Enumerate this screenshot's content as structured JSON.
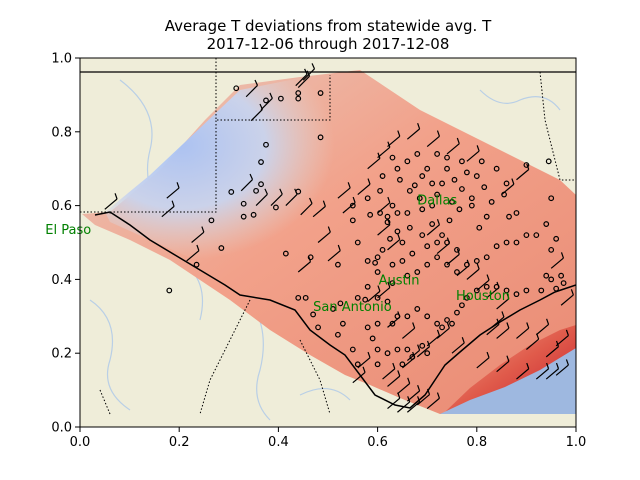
{
  "chart_data": {
    "type": "heatmap",
    "title_lines": [
      "Average T deviations from statewide avg. T",
      "2017-12-06 through 2017-12-08"
    ],
    "xlabel": "",
    "ylabel": "",
    "xlim": [
      0,
      1
    ],
    "ylim": [
      0,
      1
    ],
    "xticks": [
      0.0,
      0.2,
      0.4,
      0.6,
      0.8,
      1.0
    ],
    "yticks": [
      0.0,
      0.2,
      0.4,
      0.6,
      0.8,
      1.0
    ],
    "xtick_labels": [
      "0.0",
      "0.2",
      "0.4",
      "0.6",
      "0.8",
      "1.0"
    ],
    "ytick_labels": [
      "0.0",
      "0.2",
      "0.4",
      "0.6",
      "0.8",
      "1.0"
    ],
    "grid": false,
    "colormap": "coolwarm",
    "colors": {
      "land": "#efedd9",
      "water": "#9eb8e0",
      "river": "#b9cfe6",
      "cold": "#a9c3f5",
      "neutral": "#e4d6d0",
      "warm": "#f2a18a",
      "hot": "#c41a2c",
      "label": "#008000"
    },
    "cities": [
      {
        "name": "El Paso",
        "x": -0.07,
        "y": 0.535
      },
      {
        "name": "Dallas",
        "x": 0.68,
        "y": 0.615
      },
      {
        "name": "Austin",
        "x": 0.602,
        "y": 0.398
      },
      {
        "name": "San Antonio",
        "x": 0.47,
        "y": 0.327
      },
      {
        "name": "Houston",
        "x": 0.758,
        "y": 0.357
      }
    ],
    "stations": [
      [
        0.315,
        0.918
      ],
      [
        0.375,
        0.885
      ],
      [
        0.405,
        0.89
      ],
      [
        0.44,
        0.905
      ],
      [
        0.44,
        0.89
      ],
      [
        0.485,
        0.905
      ],
      [
        0.485,
        0.785
      ],
      [
        0.365,
        0.718
      ],
      [
        0.375,
        0.765
      ],
      [
        0.305,
        0.637
      ],
      [
        0.355,
        0.64
      ],
      [
        0.365,
        0.658
      ],
      [
        0.33,
        0.605
      ],
      [
        0.33,
        0.57
      ],
      [
        0.35,
        0.575
      ],
      [
        0.395,
        0.595
      ],
      [
        0.44,
        0.638
      ],
      [
        0.265,
        0.56
      ],
      [
        0.285,
        0.485
      ],
      [
        0.235,
        0.44
      ],
      [
        0.18,
        0.37
      ],
      [
        0.415,
        0.47
      ],
      [
        0.465,
        0.46
      ],
      [
        0.44,
        0.35
      ],
      [
        0.455,
        0.35
      ],
      [
        0.47,
        0.305
      ],
      [
        0.52,
        0.44
      ],
      [
        0.525,
        0.335
      ],
      [
        0.53,
        0.28
      ],
      [
        0.56,
        0.5
      ],
      [
        0.55,
        0.56
      ],
      [
        0.55,
        0.6
      ],
      [
        0.58,
        0.62
      ],
      [
        0.585,
        0.575
      ],
      [
        0.605,
        0.58
      ],
      [
        0.605,
        0.64
      ],
      [
        0.61,
        0.68
      ],
      [
        0.62,
        0.555
      ],
      [
        0.63,
        0.6
      ],
      [
        0.64,
        0.7
      ],
      [
        0.645,
        0.67
      ],
      [
        0.66,
        0.72
      ],
      [
        0.665,
        0.64
      ],
      [
        0.675,
        0.655
      ],
      [
        0.685,
        0.62
      ],
      [
        0.69,
        0.68
      ],
      [
        0.7,
        0.7
      ],
      [
        0.71,
        0.66
      ],
      [
        0.72,
        0.63
      ],
      [
        0.73,
        0.66
      ],
      [
        0.74,
        0.7
      ],
      [
        0.755,
        0.67
      ],
      [
        0.77,
        0.645
      ],
      [
        0.78,
        0.69
      ],
      [
        0.8,
        0.68
      ],
      [
        0.815,
        0.65
      ],
      [
        0.83,
        0.61
      ],
      [
        0.84,
        0.7
      ],
      [
        0.855,
        0.63
      ],
      [
        0.865,
        0.57
      ],
      [
        0.82,
        0.57
      ],
      [
        0.805,
        0.54
      ],
      [
        0.79,
        0.6
      ],
      [
        0.765,
        0.59
      ],
      [
        0.745,
        0.56
      ],
      [
        0.73,
        0.52
      ],
      [
        0.71,
        0.55
      ],
      [
        0.69,
        0.52
      ],
      [
        0.665,
        0.54
      ],
      [
        0.65,
        0.5
      ],
      [
        0.64,
        0.53
      ],
      [
        0.625,
        0.51
      ],
      [
        0.61,
        0.48
      ],
      [
        0.595,
        0.445
      ],
      [
        0.6,
        0.42
      ],
      [
        0.58,
        0.38
      ],
      [
        0.56,
        0.35
      ],
      [
        0.575,
        0.345
      ],
      [
        0.6,
        0.35
      ],
      [
        0.62,
        0.34
      ],
      [
        0.63,
        0.39
      ],
      [
        0.66,
        0.41
      ],
      [
        0.68,
        0.42
      ],
      [
        0.7,
        0.44
      ],
      [
        0.72,
        0.46
      ],
      [
        0.74,
        0.44
      ],
      [
        0.76,
        0.42
      ],
      [
        0.78,
        0.44
      ],
      [
        0.8,
        0.45
      ],
      [
        0.82,
        0.46
      ],
      [
        0.84,
        0.49
      ],
      [
        0.86,
        0.5
      ],
      [
        0.88,
        0.5
      ],
      [
        0.9,
        0.52
      ],
      [
        0.92,
        0.52
      ],
      [
        0.95,
        0.48
      ],
      [
        0.96,
        0.51
      ],
      [
        0.94,
        0.41
      ],
      [
        0.95,
        0.4
      ],
      [
        0.97,
        0.41
      ],
      [
        0.975,
        0.39
      ],
      [
        0.96,
        0.375
      ],
      [
        0.93,
        0.37
      ],
      [
        0.9,
        0.37
      ],
      [
        0.88,
        0.36
      ],
      [
        0.86,
        0.37
      ],
      [
        0.84,
        0.38
      ],
      [
        0.82,
        0.38
      ],
      [
        0.8,
        0.37
      ],
      [
        0.78,
        0.35
      ],
      [
        0.77,
        0.33
      ],
      [
        0.76,
        0.31
      ],
      [
        0.74,
        0.29
      ],
      [
        0.75,
        0.28
      ],
      [
        0.73,
        0.27
      ],
      [
        0.72,
        0.28
      ],
      [
        0.7,
        0.3
      ],
      [
        0.68,
        0.32
      ],
      [
        0.66,
        0.3
      ],
      [
        0.64,
        0.3
      ],
      [
        0.63,
        0.28
      ],
      [
        0.6,
        0.28
      ],
      [
        0.58,
        0.27
      ],
      [
        0.59,
        0.24
      ],
      [
        0.6,
        0.21
      ],
      [
        0.62,
        0.2
      ],
      [
        0.64,
        0.21
      ],
      [
        0.66,
        0.21
      ],
      [
        0.69,
        0.22
      ],
      [
        0.7,
        0.2
      ],
      [
        0.67,
        0.19
      ],
      [
        0.65,
        0.17
      ],
      [
        0.6,
        0.17
      ],
      [
        0.56,
        0.17
      ],
      [
        0.55,
        0.21
      ],
      [
        0.52,
        0.25
      ],
      [
        0.51,
        0.32
      ],
      [
        0.48,
        0.27
      ],
      [
        0.95,
        0.62
      ],
      [
        0.94,
        0.55
      ],
      [
        0.88,
        0.58
      ],
      [
        0.86,
        0.66
      ],
      [
        0.9,
        0.71
      ],
      [
        0.945,
        0.72
      ],
      [
        0.81,
        0.72
      ],
      [
        0.77,
        0.72
      ],
      [
        0.74,
        0.73
      ],
      [
        0.72,
        0.74
      ],
      [
        0.68,
        0.74
      ],
      [
        0.63,
        0.73
      ],
      [
        0.62,
        0.57
      ],
      [
        0.64,
        0.58
      ],
      [
        0.66,
        0.58
      ],
      [
        0.69,
        0.59
      ],
      [
        0.71,
        0.6
      ],
      [
        0.75,
        0.61
      ],
      [
        0.79,
        0.62
      ],
      [
        0.7,
        0.49
      ],
      [
        0.72,
        0.5
      ],
      [
        0.74,
        0.5
      ],
      [
        0.76,
        0.48
      ],
      [
        0.67,
        0.47
      ],
      [
        0.65,
        0.45
      ],
      [
        0.63,
        0.44
      ],
      [
        0.6,
        0.46
      ],
      [
        0.58,
        0.45
      ]
    ],
    "wind_barbs": [
      [
        0.435,
        0.925,
        45
      ],
      [
        0.45,
        0.94,
        45
      ],
      [
        0.365,
        0.86,
        45
      ],
      [
        0.335,
        0.895,
        45
      ],
      [
        0.345,
        0.83,
        45
      ],
      [
        0.44,
        0.92,
        45
      ],
      [
        0.325,
        0.64,
        45
      ],
      [
        0.355,
        0.6,
        45
      ],
      [
        0.385,
        0.6,
        45
      ],
      [
        0.415,
        0.6,
        45
      ],
      [
        0.445,
        0.575,
        45
      ],
      [
        0.175,
        0.62,
        40
      ],
      [
        0.165,
        0.57,
        40
      ],
      [
        0.225,
        0.5,
        40
      ],
      [
        0.215,
        0.45,
        40
      ],
      [
        0.05,
        0.59,
        40
      ],
      [
        0.47,
        0.57,
        40
      ],
      [
        0.48,
        0.5,
        40
      ],
      [
        0.53,
        0.58,
        40
      ],
      [
        0.6,
        0.58,
        40
      ],
      [
        0.6,
        0.52,
        40
      ],
      [
        0.62,
        0.48,
        40
      ],
      [
        0.7,
        0.52,
        40
      ],
      [
        0.72,
        0.47,
        40
      ],
      [
        0.74,
        0.44,
        40
      ],
      [
        0.76,
        0.41,
        40
      ],
      [
        0.78,
        0.4,
        40
      ],
      [
        0.8,
        0.37,
        40
      ],
      [
        0.82,
        0.35,
        40
      ],
      [
        0.84,
        0.32,
        40
      ],
      [
        0.83,
        0.27,
        40
      ],
      [
        0.82,
        0.25,
        40
      ],
      [
        0.84,
        0.24,
        40
      ],
      [
        0.88,
        0.24,
        40
      ],
      [
        0.9,
        0.21,
        40
      ],
      [
        0.94,
        0.19,
        40
      ],
      [
        0.96,
        0.22,
        40
      ],
      [
        0.96,
        0.14,
        40
      ],
      [
        0.94,
        0.13,
        40
      ],
      [
        0.92,
        0.13,
        40
      ],
      [
        0.88,
        0.13,
        40
      ],
      [
        0.84,
        0.15,
        40
      ],
      [
        0.8,
        0.16,
        40
      ],
      [
        0.75,
        0.2,
        40
      ],
      [
        0.72,
        0.24,
        40
      ],
      [
        0.7,
        0.22,
        40
      ],
      [
        0.66,
        0.18,
        40
      ],
      [
        0.65,
        0.16,
        40
      ],
      [
        0.61,
        0.13,
        40
      ],
      [
        0.62,
        0.11,
        40
      ],
      [
        0.64,
        0.09,
        40
      ],
      [
        0.66,
        0.07,
        40
      ],
      [
        0.68,
        0.06,
        40
      ],
      [
        0.7,
        0.05,
        40
      ],
      [
        0.62,
        0.05,
        40
      ],
      [
        0.64,
        0.04,
        40
      ],
      [
        0.66,
        0.04,
        40
      ],
      [
        0.92,
        0.25,
        40
      ],
      [
        0.97,
        0.33,
        40
      ],
      [
        0.95,
        0.43,
        40
      ],
      [
        0.85,
        0.63,
        40
      ],
      [
        0.88,
        0.67,
        40
      ],
      [
        0.78,
        0.72,
        40
      ],
      [
        0.74,
        0.74,
        40
      ],
      [
        0.7,
        0.76,
        40
      ],
      [
        0.66,
        0.78,
        40
      ],
      [
        0.62,
        0.76,
        40
      ],
      [
        0.6,
        0.73,
        40
      ],
      [
        0.58,
        0.7,
        40
      ],
      [
        0.56,
        0.63,
        40
      ],
      [
        0.52,
        0.62,
        40
      ],
      [
        0.5,
        0.45,
        40
      ],
      [
        0.44,
        0.42,
        40
      ],
      [
        0.62,
        0.27,
        40
      ],
      [
        0.65,
        0.24,
        40
      ],
      [
        0.68,
        0.19,
        40
      ],
      [
        0.55,
        0.12,
        40
      ],
      [
        0.56,
        0.16,
        40
      ],
      [
        0.6,
        0.35,
        40
      ],
      [
        0.58,
        0.34,
        40
      ]
    ]
  }
}
